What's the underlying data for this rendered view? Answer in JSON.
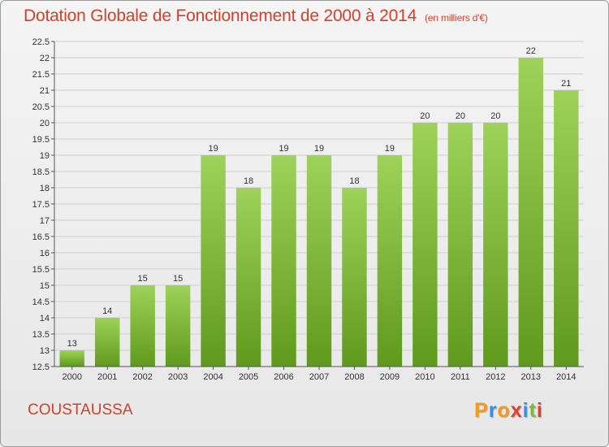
{
  "title": "Dotation Globale de Fonctionnement de 2000 à 2014",
  "subtitle": "(en milliers d'€)",
  "place": "COUSTAUSSA",
  "logo": {
    "text": "Proxiti",
    "colors": [
      "#f39a1e",
      "#3a8fd6",
      "#f39a1e",
      "#e0402f",
      "#3a8fd6",
      "#7ab648",
      "#e0402f"
    ]
  },
  "colors": {
    "title": "#d2402a",
    "bar_light": "#9ed25a",
    "bar_dark": "#5f9a1c",
    "grid": "#cfcfcf"
  },
  "chart_data": {
    "type": "bar",
    "categories": [
      "2000",
      "2001",
      "2002",
      "2003",
      "2004",
      "2005",
      "2006",
      "2007",
      "2008",
      "2009",
      "2010",
      "2011",
      "2012",
      "2013",
      "2014"
    ],
    "values": [
      13,
      14,
      15,
      15,
      19,
      18,
      19,
      19,
      18,
      19,
      20,
      20,
      20,
      22,
      21
    ],
    "ylim": [
      12.5,
      22.5
    ],
    "yticks": [
      "12.5",
      "13",
      "13.5",
      "14",
      "14.5",
      "15",
      "15.5",
      "16",
      "16.5",
      "17",
      "17.5",
      "18",
      "18.5",
      "19",
      "19.5",
      "20",
      "20.5",
      "21",
      "21.5",
      "22",
      "22.5"
    ],
    "grid": true
  }
}
